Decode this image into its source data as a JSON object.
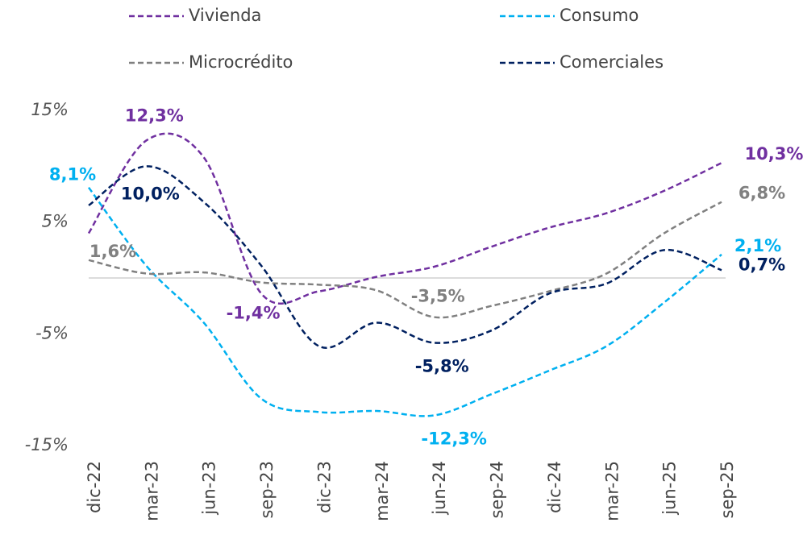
{
  "chart_data": {
    "type": "line",
    "categories": [
      "dic-22",
      "mar-23",
      "jun-23",
      "sep-23",
      "dic-23",
      "mar-24",
      "jun-24",
      "sep-24",
      "dic-24",
      "mar-25",
      "jun-25",
      "sep-25"
    ],
    "series": [
      {
        "name": "Vivienda",
        "color": "#7030a0",
        "values": [
          4.0,
          12.3,
          10.8,
          -1.4,
          -1.2,
          0.1,
          1.0,
          2.8,
          4.5,
          5.8,
          7.8,
          10.3
        ],
        "value_labels": [
          null,
          "12,3%",
          null,
          "-1,4%",
          null,
          null,
          null,
          null,
          null,
          null,
          null,
          "10,3%"
        ]
      },
      {
        "name": "Consumo",
        "color": "#00b0f0",
        "values": [
          8.1,
          1.1,
          -4.0,
          -10.8,
          -12.0,
          -11.9,
          -12.3,
          -10.4,
          -8.3,
          -6.1,
          -2.2,
          2.1
        ],
        "value_labels": [
          "8,1%",
          null,
          null,
          null,
          null,
          null,
          "-12,3%",
          null,
          null,
          null,
          null,
          "2,1%"
        ]
      },
      {
        "name": "Microcrédito",
        "color": "#808080",
        "values": [
          1.6,
          0.4,
          0.5,
          -0.4,
          -0.6,
          -1.1,
          -3.5,
          -2.5,
          -1.2,
          0.4,
          4.0,
          6.8
        ],
        "value_labels": [
          "1,6%",
          null,
          null,
          null,
          null,
          null,
          "-3,5%",
          null,
          null,
          null,
          null,
          "6,8%"
        ]
      },
      {
        "name": "Comerciales",
        "color": "#002060",
        "values": [
          6.5,
          10.0,
          6.8,
          1.1,
          -6.1,
          -4.0,
          -5.8,
          -4.7,
          -1.4,
          -0.5,
          2.5,
          0.7
        ],
        "value_labels": [
          null,
          "10,0%",
          null,
          null,
          null,
          null,
          "-5,8%",
          null,
          null,
          null,
          null,
          "0,7%"
        ]
      }
    ],
    "ylim": [
      -15,
      15
    ],
    "yticks": [
      {
        "value": -15,
        "label": "-15%"
      },
      {
        "value": -5,
        "label": "-5%"
      },
      {
        "value": 5,
        "label": "5%"
      },
      {
        "value": 15,
        "label": "15%"
      }
    ],
    "grid": false,
    "legend": "top"
  }
}
